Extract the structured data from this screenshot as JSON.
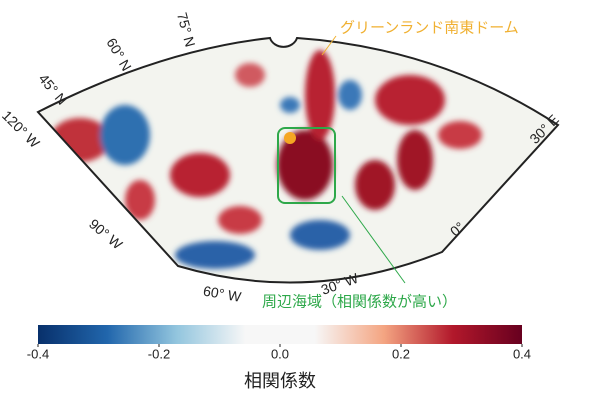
{
  "map": {
    "lat_labels": [
      "75° N",
      "60° N",
      "45° N"
    ],
    "lon_labels": [
      "120° W",
      "90° W",
      "60° W",
      "30° W",
      "0°",
      "30° E"
    ],
    "annotations": {
      "dome": "グリーンランド南東ドーム",
      "sea": "周辺海域（相関係数が高い）"
    }
  },
  "colorbar": {
    "lim": [
      -0.4,
      0.4
    ],
    "ticks": [
      -0.4,
      -0.2,
      {
        "value": 0,
        "label": "0.0"
      },
      0.2,
      0.4
    ],
    "colors": [
      "#08306b",
      "#2166ac",
      "#92c5de",
      "#f7f7f7",
      "#f7f7f7",
      "#f4a582",
      "#b2182b",
      "#67001f"
    ],
    "label": "相関係数"
  }
}
